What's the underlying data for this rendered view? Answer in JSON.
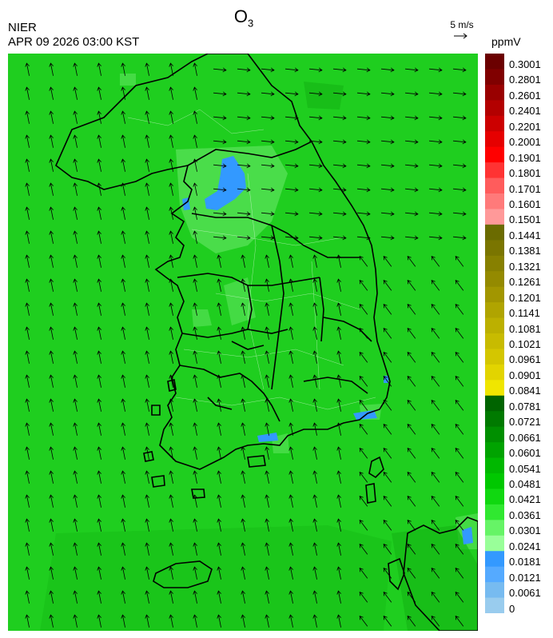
{
  "header": {
    "title_main": "O",
    "title_sub": "3",
    "agency": "NIER",
    "timestamp": "APR 09 2026 03:00 KST",
    "wind_reference": "5 m/s",
    "unit": "ppmV"
  },
  "legend": {
    "labels": [
      "0.3001",
      "0.2801",
      "0.2601",
      "0.2401",
      "0.2201",
      "0.2001",
      "0.1901",
      "0.1801",
      "0.1701",
      "0.1601",
      "0.1501",
      "0.1441",
      "0.1381",
      "0.1321",
      "0.1261",
      "0.1201",
      "0.1141",
      "0.1081",
      "0.1021",
      "0.0961",
      "0.0901",
      "0.0841",
      "0.0781",
      "0.0721",
      "0.0661",
      "0.0601",
      "0.0541",
      "0.0481",
      "0.0421",
      "0.0361",
      "0.0301",
      "0.0241",
      "0.0181",
      "0.0121",
      "0.0061",
      "0"
    ],
    "colors": [
      "#6b0000",
      "#800000",
      "#990000",
      "#b30000",
      "#cc0000",
      "#e60000",
      "#ff0000",
      "#ff3333",
      "#ff5c5c",
      "#ff7a7a",
      "#ff9999",
      "#6b6b00",
      "#7a7500",
      "#878000",
      "#948a00",
      "#a29600",
      "#b0a400",
      "#bcb000",
      "#c8bb00",
      "#d4c600",
      "#e2d400",
      "#f0e600",
      "#006400",
      "#007a00",
      "#008f00",
      "#00a300",
      "#00b800",
      "#00c800",
      "#10d810",
      "#30e830",
      "#66f466",
      "#99ff99",
      "#3399ff",
      "#55aaff",
      "#77bbf0",
      "#99ccee"
    ]
  },
  "map": {
    "background_color": "#1fce1f",
    "low_ozone_color": "#3399ff",
    "high_patch_color": "#5de45d",
    "boundary_color": "#000000"
  }
}
